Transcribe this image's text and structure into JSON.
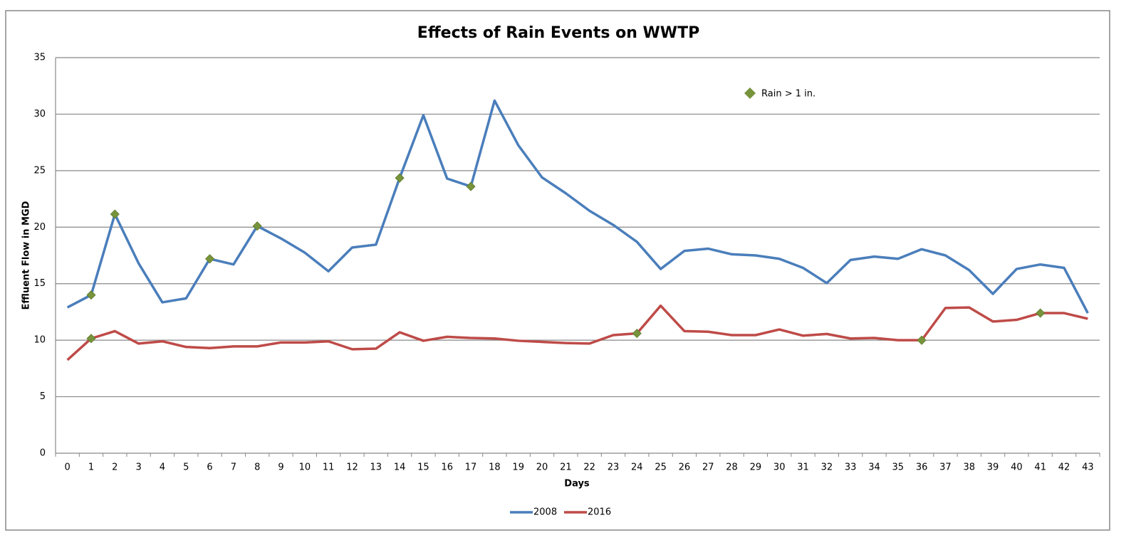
{
  "chart_data": {
    "type": "line",
    "title": "Effects of Rain Events on WWTP",
    "xlabel": "Days",
    "ylabel": "Effluent Flow in MGD",
    "categories": [
      "0",
      "1",
      "2",
      "3",
      "4",
      "5",
      "6",
      "7",
      "8",
      "9",
      "10",
      "11",
      "12",
      "13",
      "14",
      "15",
      "16",
      "17",
      "18",
      "19",
      "20",
      "21",
      "22",
      "23",
      "24",
      "25",
      "26",
      "27",
      "28",
      "29",
      "30",
      "31",
      "32",
      "33",
      "34",
      "35",
      "36",
      "37",
      "38",
      "39",
      "40",
      "41",
      "42",
      "43"
    ],
    "series": [
      {
        "name": "2008",
        "color": "#4a7ebb",
        "values": [
          12.9,
          14.0,
          21.15,
          16.8,
          13.35,
          13.7,
          17.2,
          16.7,
          20.1,
          19.0,
          17.75,
          16.1,
          18.2,
          18.45,
          24.35,
          29.9,
          24.3,
          23.6,
          31.2,
          27.25,
          24.4,
          23.0,
          21.45,
          20.2,
          18.7,
          16.3,
          17.9,
          18.1,
          17.6,
          17.5,
          17.2,
          16.4,
          15.05,
          17.1,
          17.4,
          17.2,
          18.05,
          17.5,
          16.2,
          14.1,
          16.3,
          16.7,
          16.4,
          12.4
        ]
      },
      {
        "name": "2016",
        "color": "#be4b48",
        "values": [
          8.25,
          10.15,
          10.8,
          9.7,
          9.9,
          9.4,
          9.3,
          9.45,
          9.45,
          9.8,
          9.8,
          9.9,
          9.2,
          9.25,
          10.7,
          9.95,
          10.3,
          10.2,
          10.15,
          9.95,
          9.85,
          9.75,
          9.7,
          10.45,
          10.6,
          13.05,
          10.8,
          10.75,
          10.45,
          10.45,
          10.95,
          10.4,
          10.55,
          10.15,
          10.2,
          10.0,
          10.0,
          12.85,
          12.9,
          11.65,
          11.8,
          12.4,
          12.4,
          11.9
        ]
      }
    ],
    "markers": {
      "name": "Rain > 1 in.",
      "color": "#77933c",
      "points": [
        {
          "series": 0,
          "index": 1
        },
        {
          "series": 0,
          "index": 2
        },
        {
          "series": 0,
          "index": 6
        },
        {
          "series": 0,
          "index": 8
        },
        {
          "series": 0,
          "index": 14
        },
        {
          "series": 0,
          "index": 17
        },
        {
          "series": 1,
          "index": 1
        },
        {
          "series": 1,
          "index": 24
        },
        {
          "series": 1,
          "index": 36
        },
        {
          "series": 1,
          "index": 41
        }
      ]
    },
    "ylim": [
      0,
      35
    ],
    "yticks": [
      0,
      5,
      10,
      15,
      20,
      25,
      30,
      35
    ],
    "grid": true,
    "legend": "bottom"
  }
}
